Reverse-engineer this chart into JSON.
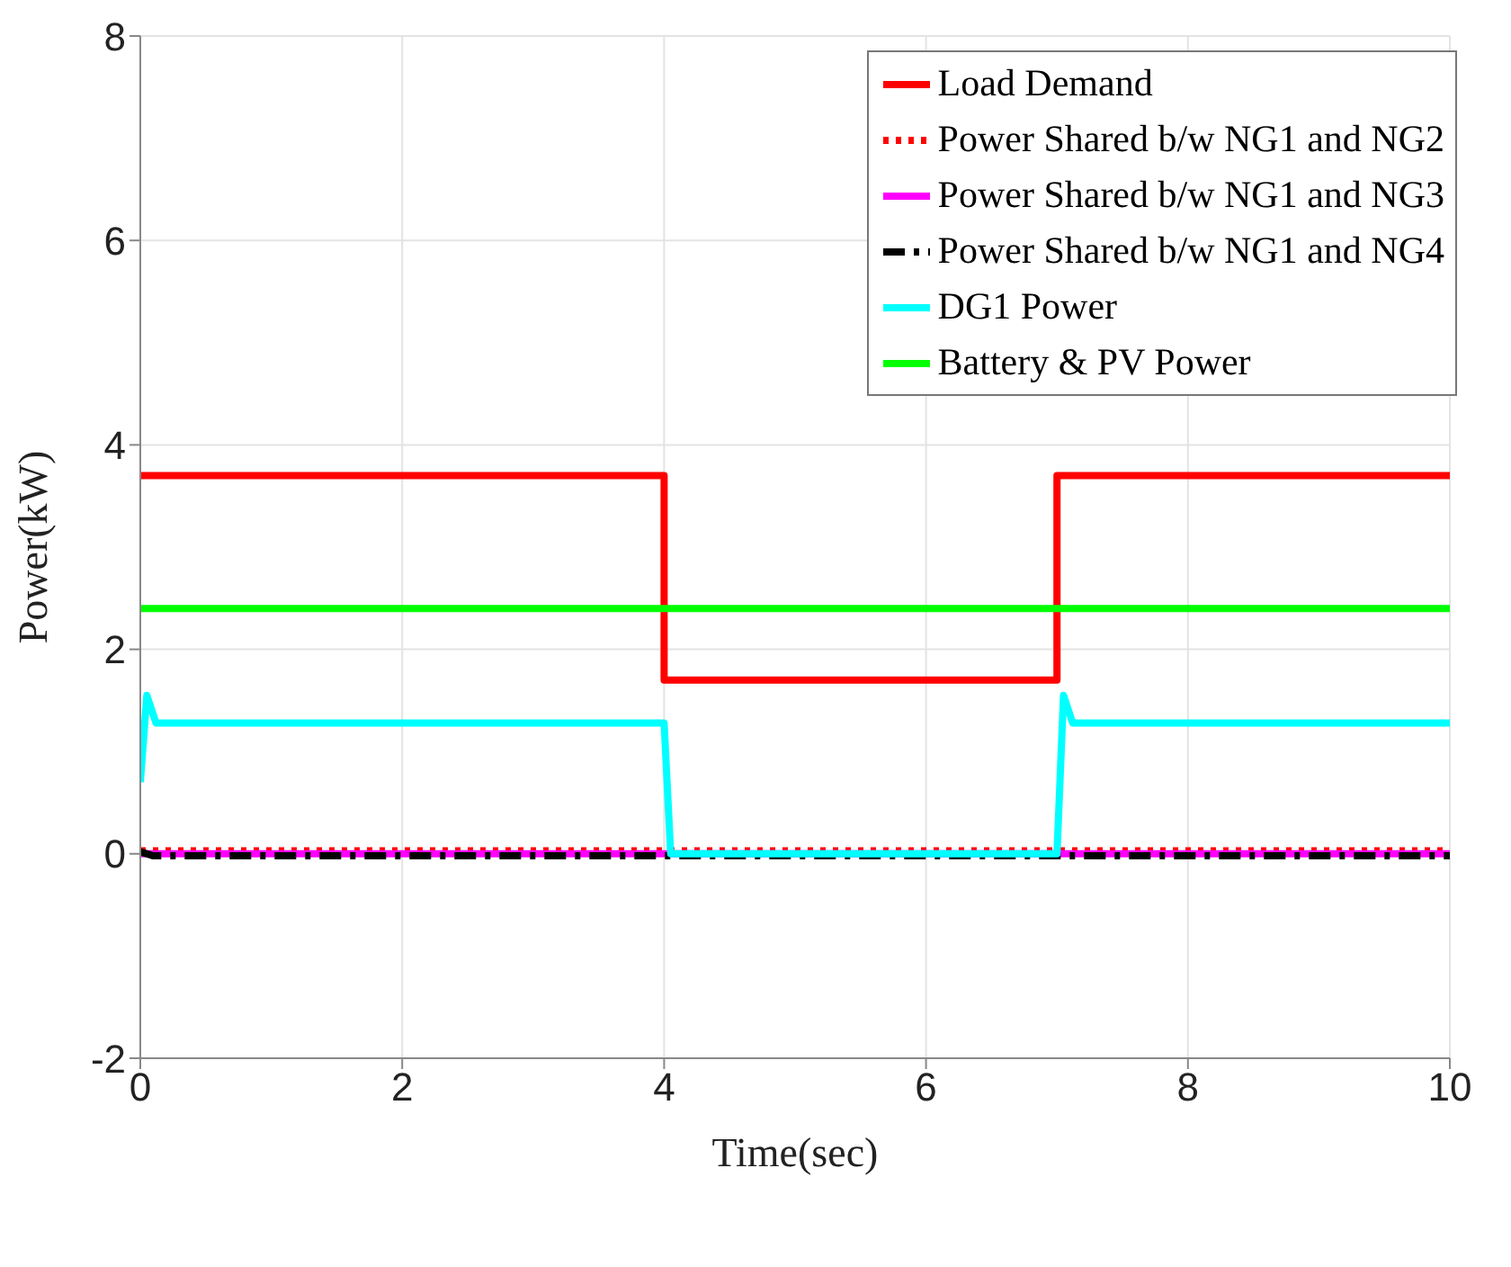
{
  "chart_data": {
    "type": "line",
    "xlabel": "Time(sec)",
    "ylabel": "Power(kW)",
    "xlim": [
      0,
      10
    ],
    "ylim": [
      -2,
      8
    ],
    "xticks": [
      0,
      2,
      4,
      6,
      8,
      10
    ],
    "yticks": [
      -2,
      0,
      2,
      4,
      6,
      8
    ],
    "grid": true,
    "legend": "top right",
    "marker": "none",
    "series": [
      {
        "name": "Load Demand",
        "color": "#ff0000",
        "line_style": "solid",
        "x": [
          0,
          4,
          4,
          7,
          7,
          10
        ],
        "values": [
          3.7,
          3.7,
          1.7,
          1.7,
          3.7,
          3.7
        ]
      },
      {
        "name": "Power Shared b/w NG1 and NG2",
        "color": "#ff0000",
        "line_style": "dotted",
        "x": [
          0,
          10
        ],
        "values": [
          0.03,
          0.03
        ]
      },
      {
        "name": "Power Shared b/w NG1 and NG3",
        "color": "#ff00ff",
        "line_style": "solid",
        "x": [
          0,
          10
        ],
        "values": [
          0,
          0
        ]
      },
      {
        "name": "Power Shared b/w NG1 and NG4",
        "color": "#000000",
        "line_style": "dashed",
        "x": [
          0,
          0.1,
          10
        ],
        "values": [
          0.02,
          -0.02,
          -0.02
        ]
      },
      {
        "name": "DG1 Power",
        "color": "#00ffff",
        "line_style": "solid",
        "x": [
          0,
          0.05,
          0.12,
          4,
          4.05,
          7,
          7.05,
          7.12,
          10
        ],
        "values": [
          0.7,
          1.55,
          1.28,
          1.28,
          0,
          0,
          1.55,
          1.28,
          1.28
        ]
      },
      {
        "name": "Battery & PV Power",
        "color": "#00ff00",
        "line_style": "solid",
        "x": [
          0,
          10
        ],
        "values": [
          2.4,
          2.4
        ]
      }
    ]
  }
}
